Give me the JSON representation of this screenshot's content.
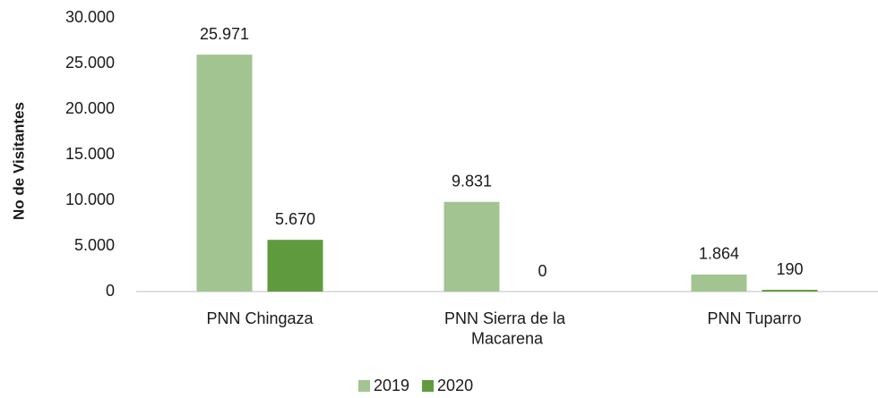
{
  "chart_data": {
    "type": "bar",
    "y_label": "No de Visitantes",
    "categories": [
      "PNN Chingaza",
      "PNN Sierra de la Macarena",
      "PNN Tuparro"
    ],
    "series": [
      {
        "name": "2019",
        "color": "#a2c491",
        "values": [
          25971,
          9831,
          1864
        ],
        "value_labels": [
          "25.971",
          "9.831",
          "1.864"
        ]
      },
      {
        "name": "2020",
        "color": "#5f9b3e",
        "values": [
          5670,
          0,
          190
        ],
        "value_labels": [
          "5.670",
          "0",
          "190"
        ]
      }
    ],
    "ylim": [
      0,
      30000
    ],
    "yticks": [
      0,
      {
        "value": 5000,
        "label": "5.000"
      },
      {
        "value": 10000,
        "label": "10.000"
      },
      {
        "value": 15000,
        "label": "15.000"
      },
      {
        "value": 20000,
        "label": "20.000"
      },
      {
        "value": 25000,
        "label": "25.000"
      },
      {
        "value": 30000,
        "label": "30.000"
      }
    ],
    "grid": false,
    "legend": "bottom"
  }
}
